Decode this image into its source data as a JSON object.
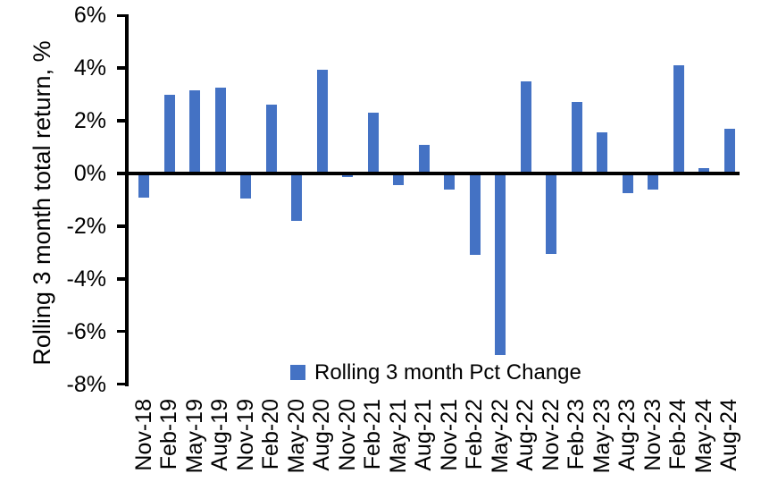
{
  "chart_data": {
    "type": "bar",
    "title": "",
    "xlabel": "",
    "ylabel": "Rolling 3 month total return, %",
    "ylim": [
      -8,
      6
    ],
    "grid": false,
    "legend_position": "bottom-center",
    "y_ticks": [
      {
        "label": "6%",
        "value": 6
      },
      {
        "label": "4%",
        "value": 4
      },
      {
        "label": "2%",
        "value": 2
      },
      {
        "label": "0%",
        "value": 0
      },
      {
        "label": "-2%",
        "value": -2
      },
      {
        "label": "-4%",
        "value": -4
      },
      {
        "label": "-6%",
        "value": -6
      },
      {
        "label": "-8%",
        "value": -8
      }
    ],
    "categories": [
      "Nov-18",
      "Feb-19",
      "May-19",
      "Aug-19",
      "Nov-19",
      "Feb-20",
      "May-20",
      "Aug-20",
      "Nov-20",
      "Feb-21",
      "May-21",
      "Aug-21",
      "Nov-21",
      "Feb-22",
      "May-22",
      "Aug-22",
      "Nov-22",
      "Feb-23",
      "May-23",
      "Aug-23",
      "Nov-23",
      "Feb-24",
      "May-24",
      "Aug-24"
    ],
    "series": [
      {
        "name": "Rolling 3 month Pct Change",
        "values": [
          -0.9,
          3.0,
          3.15,
          3.25,
          -0.95,
          2.6,
          -1.8,
          3.95,
          -0.15,
          2.3,
          -0.45,
          1.1,
          -0.6,
          -3.1,
          -6.9,
          3.5,
          -3.05,
          2.7,
          1.55,
          -0.75,
          -0.6,
          4.1,
          0.2,
          1.7
        ]
      }
    ]
  },
  "legend": {
    "label": "Rolling 3 month Pct Change"
  },
  "colors": {
    "bar": "#4472C4",
    "axis": "#000000",
    "text": "#000000",
    "background": "#FFFFFF"
  }
}
